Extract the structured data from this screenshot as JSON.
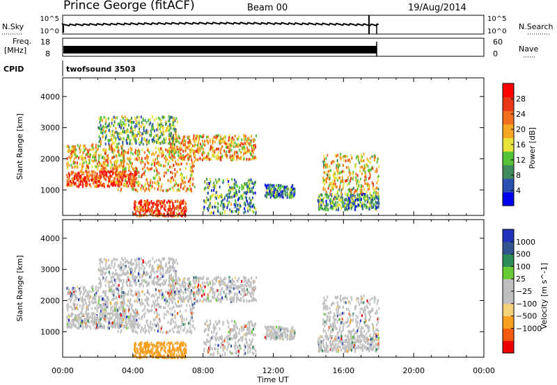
{
  "header": {
    "station": "Prince George (fitACF)",
    "beam": "Beam 00",
    "date": "19/Aug/2014"
  },
  "strips": {
    "nsky_label": "N.Sky",
    "nsky_top": "10^5",
    "nsky_bottom": "10^0",
    "nsearch_label": "N.Search",
    "nsearch_top": "10^5",
    "nsearch_bottom": "10^0",
    "freq_label": "Freq.",
    "freq_unit": "[MHz]",
    "freq_top": "18",
    "freq_bottom": "8",
    "nave_label": "Nave",
    "nave_top": "60",
    "nave_bottom": "0",
    "cpid_label": "CPID",
    "cpid_value": "twofsound  3503"
  },
  "colors": {
    "power_scale": [
      "#0000ee",
      "#2a4fb0",
      "#3e8a5c",
      "#55c23a",
      "#e8e23a",
      "#f5a623",
      "#f07020",
      "#e83818",
      "#ff0000"
    ],
    "velocity_scale": [
      "#ee0000",
      "#f25a10",
      "#f7a020",
      "#f4d27a",
      "#c0c0c0",
      "#c0c0c0",
      "#66cc33",
      "#2e8b57",
      "#33558f",
      "#2233bb"
    ]
  },
  "chart_data": [
    {
      "type": "heatmap",
      "name": "power",
      "xlabel": "Time UT",
      "ylabel": "Slant Range [km]",
      "colorbar_label": "Power [dB]",
      "x_ticks": [
        "00:00",
        "04:00",
        "08:00",
        "12:00",
        "16:00",
        "20:00",
        "00:00"
      ],
      "y_ticks": [
        1000,
        2000,
        3000,
        4000
      ],
      "xlim_hours": [
        0,
        24
      ],
      "ylim_km": [
        180,
        4600
      ],
      "colorbar_ticks": [
        4,
        8,
        12,
        16,
        20,
        24,
        28
      ],
      "colorbar_range": [
        0,
        32
      ],
      "data_extent_hours": [
        0,
        18
      ]
    },
    {
      "type": "heatmap",
      "name": "velocity",
      "xlabel": "Time UT",
      "ylabel": "Slant Range [km]",
      "colorbar_label": "Velocity [m s^-1]",
      "x_ticks": [
        "00:00",
        "04:00",
        "08:00",
        "12:00",
        "16:00",
        "20:00",
        "00:00"
      ],
      "y_ticks": [
        1000,
        2000,
        3000,
        4000
      ],
      "xlim_hours": [
        0,
        24
      ],
      "ylim_km": [
        180,
        4600
      ],
      "colorbar_ticks": [
        "1000",
        "500",
        "100",
        "25",
        "−25",
        "−100",
        "−500",
        "−1000"
      ],
      "data_extent_hours": [
        0,
        18
      ]
    }
  ]
}
